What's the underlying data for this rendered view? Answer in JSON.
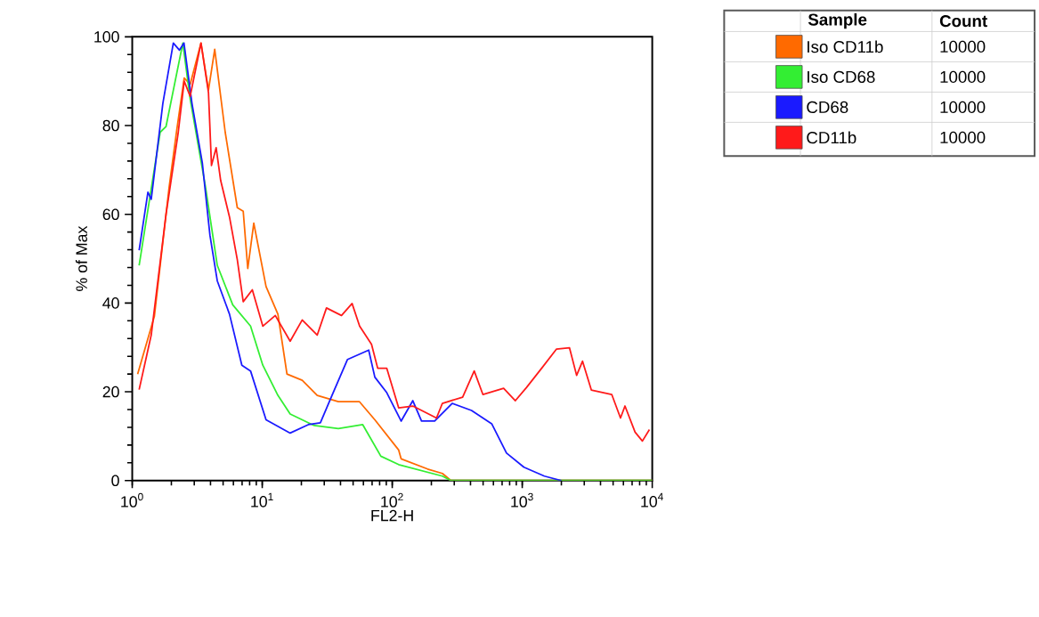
{
  "chart_data": {
    "type": "line",
    "xlabel": "FL2-H",
    "ylabel": "% of Max",
    "legend_title": "Sample",
    "legend": "top right",
    "log": "x",
    "grid": false,
    "marker": "none",
    "line_style": "solid",
    "xlim": [
      1,
      10000
    ],
    "ylim": [
      0,
      100
    ],
    "xticks": [
      {
        "value": 1,
        "label": "10$^{0}$"
      },
      {
        "value": 10,
        "label": "10$^{1}$"
      },
      {
        "value": 100,
        "label": "10$^{2}$"
      },
      {
        "value": 1000,
        "label": "10$^{3}$"
      },
      {
        "value": 10000,
        "label": "10$^{4}$"
      }
    ],
    "yticks": [
      0,
      20,
      40,
      60,
      80,
      100
    ],
    "annotations": [
      "Count",
      "10000",
      "10000",
      "10000",
      "10000"
    ],
    "series": [
      {
        "name": "Iso CD11b",
        "color": "#ff6a00",
        "x": [
          1.1,
          1.48,
          1.92,
          2.2,
          2.51,
          2.79,
          3.38,
          3.86,
          4.31,
          5.19,
          6.43,
          7.14,
          7.74,
          8.61,
          10.7,
          13.2,
          15.5,
          20.3,
          26.5,
          38.5,
          55.8,
          73.5,
          112,
          117,
          187,
          243,
          283,
          10000
        ],
        "values": [
          24,
          37,
          66,
          79,
          90.7,
          89.3,
          98.6,
          88,
          97.2,
          78.5,
          61.5,
          60.7,
          47.8,
          58,
          43.7,
          37.5,
          24,
          22.6,
          19.2,
          17.8,
          17.8,
          13.7,
          6.9,
          4.9,
          2.6,
          1.6,
          0,
          0
        ]
      },
      {
        "name": "Iso CD68",
        "color": "#33ee33",
        "x": [
          1.13,
          1.64,
          1.82,
          2.45,
          2.79,
          3.66,
          4.51,
          5.93,
          8.13,
          10.1,
          13.2,
          16.4,
          25.1,
          38.5,
          59.3,
          81.7,
          112,
          243,
          283,
          10000
        ],
        "values": [
          48.5,
          78.5,
          79.8,
          98.6,
          86,
          66.2,
          48.5,
          39.6,
          34.8,
          26,
          19.2,
          15,
          12.4,
          11.7,
          12.6,
          5.5,
          3.6,
          1,
          0,
          0
        ]
      },
      {
        "name": "CD68",
        "color": "#1a1aff",
        "x": [
          1.13,
          1.32,
          1.4,
          1.72,
          2.07,
          2.31,
          2.5,
          2.88,
          3.46,
          3.96,
          4.51,
          5.6,
          6.97,
          8.13,
          10.7,
          16.4,
          22.6,
          28.0,
          34.4,
          45.3,
          65.9,
          73.5,
          90.8,
          117,
          144,
          168,
          212,
          289,
          407,
          582,
          757,
          1030,
          1480,
          2000
        ],
        "values": [
          51.9,
          65,
          63.4,
          85,
          98.6,
          97,
          98.6,
          85,
          71.6,
          55.3,
          45,
          37.5,
          26,
          24.7,
          13.7,
          10.7,
          12.6,
          13,
          19.2,
          27.3,
          29.4,
          23.3,
          19.8,
          13.4,
          18,
          13.4,
          13.4,
          17.4,
          15.8,
          12.8,
          6.2,
          3,
          1,
          0
        ]
      },
      {
        "name": "CD11b",
        "color": "#ff1a1a",
        "x": [
          1.13,
          1.4,
          1.82,
          2.26,
          2.51,
          2.79,
          3.38,
          3.86,
          4.07,
          4.42,
          4.79,
          5.6,
          6.43,
          7.14,
          8.39,
          10.1,
          12.6,
          16.4,
          20.3,
          26.5,
          31.2,
          40.7,
          49.1,
          56.1,
          69.3,
          77.3,
          90.8,
          112,
          144,
          219,
          243,
          348,
          427,
          498,
          719,
          885,
          1080,
          1410,
          1830,
          2310,
          2620,
          2910,
          3400,
          4880,
          5700,
          6170,
          7380,
          8400,
          9510
        ],
        "values": [
          20.5,
          32.8,
          60,
          78.5,
          90,
          86.6,
          98.6,
          87.4,
          71,
          75,
          67.6,
          59.4,
          49.8,
          40.3,
          43,
          34.8,
          37.2,
          31.4,
          36.2,
          32.8,
          38.9,
          37.2,
          39.9,
          34.8,
          30.7,
          25.3,
          25.3,
          16.4,
          16.8,
          14.1,
          17.4,
          18.8,
          24.7,
          19.4,
          20.8,
          18,
          21,
          25.3,
          29.6,
          29.9,
          23.7,
          26.9,
          20.4,
          19.4,
          14.1,
          16.8,
          10.9,
          8.9,
          11.5
        ]
      }
    ]
  }
}
